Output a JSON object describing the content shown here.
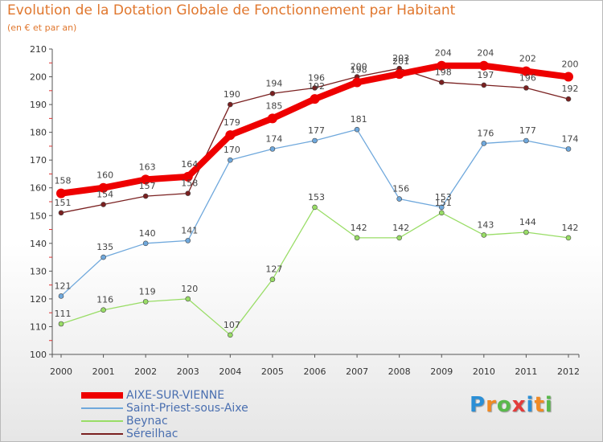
{
  "chart_data": {
    "type": "line",
    "title": "Evolution de la Dotation Globale de Fonctionnement par Habitant",
    "subtitle": "(en € et par an)",
    "xlabel": "",
    "ylabel": "",
    "ylim": [
      100,
      210
    ],
    "yticks": [
      100,
      110,
      120,
      130,
      140,
      150,
      160,
      170,
      180,
      190,
      200,
      210
    ],
    "categories": [
      "2000",
      "2001",
      "2002",
      "2003",
      "2004",
      "2005",
      "2006",
      "2007",
      "2008",
      "2009",
      "2010",
      "2011",
      "2012"
    ],
    "grid": false,
    "legend_position": "bottom-left",
    "series": [
      {
        "name": "AIXE-SUR-VIENNE",
        "color": "#ee0000",
        "values": [
          158,
          160,
          163,
          164,
          179,
          185,
          192,
          198,
          201,
          204,
          204,
          202,
          200
        ]
      },
      {
        "name": "Saint-Priest-sous-Aixe",
        "color": "#6fa8dc",
        "values": [
          121,
          135,
          140,
          141,
          170,
          174,
          177,
          181,
          156,
          153,
          176,
          177,
          174
        ]
      },
      {
        "name": "Beynac",
        "color": "#99dd66",
        "values": [
          111,
          116,
          119,
          120,
          107,
          127,
          153,
          142,
          142,
          151,
          143,
          144,
          142
        ]
      },
      {
        "name": "Séreilhac",
        "color": "#7a2020",
        "values": [
          151,
          154,
          157,
          158,
          190,
          194,
          196,
          200,
          203,
          198,
          197,
          196,
          192
        ]
      }
    ]
  },
  "logo": {
    "letters": [
      "P",
      "r",
      "o",
      "x",
      "i",
      "t",
      "i"
    ],
    "colors": [
      "#2b8fd6",
      "#f08a24",
      "#59b94b",
      "#e33b3b",
      "#2b8fd6",
      "#f08a24",
      "#59b94b"
    ]
  }
}
